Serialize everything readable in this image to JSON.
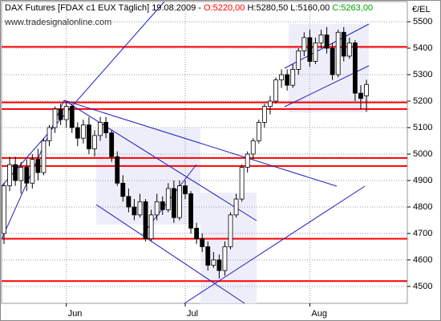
{
  "chart_data": {
    "type": "candlestick",
    "title_parts": [
      {
        "text": "DAX Futures [FDAX c1 EUX  Täglich] 19.08.2009 -",
        "color": "#000000"
      },
      {
        "text": "O:5220,00",
        "color": "#ff0000"
      },
      {
        "text": "H:5280,50 L:5160,00",
        "color": "#000000"
      },
      {
        "text": "C:5263,00",
        "color": "#00a000"
      }
    ],
    "watermark": "www.tradesignalonline.com",
    "y_label": "€/EL",
    "categories": [
      null,
      null,
      null,
      null,
      null,
      null,
      null,
      null,
      null,
      null,
      null,
      "Jun",
      null,
      null,
      null,
      null,
      null,
      null,
      null,
      null,
      null,
      null,
      null,
      null,
      null,
      null,
      null,
      null,
      null,
      null,
      null,
      null,
      "Jul",
      null,
      null,
      null,
      null,
      null,
      null,
      null,
      null,
      null,
      null,
      null,
      null,
      null,
      null,
      null,
      null,
      null,
      null,
      null,
      null,
      null,
      "Aug",
      null,
      null,
      null,
      null,
      null,
      null,
      null,
      null,
      null,
      null
    ],
    "open": [
      4700,
      4880,
      4960,
      4900,
      4950,
      4890,
      4980,
      4930,
      5050,
      5100,
      5170,
      5130,
      5180,
      5100,
      5060,
      5110,
      5020,
      5070,
      5120,
      5080,
      4990,
      4890,
      4840,
      4800,
      4770,
      4820,
      4680,
      4770,
      4820,
      4790,
      4870,
      4760,
      4880,
      4850,
      4720,
      4680,
      4650,
      4580,
      4600,
      4560,
      4650,
      4770,
      4830,
      4950,
      5000,
      5050,
      5120,
      5180,
      5200,
      5280,
      5300,
      5260,
      5320,
      5390,
      5440,
      5350,
      5420,
      5450,
      5400,
      5300,
      5460,
      5370,
      5420,
      5230,
      5220
    ],
    "high": [
      4890,
      4990,
      4990,
      4970,
      4980,
      5000,
      5020,
      5060,
      5110,
      5180,
      5190,
      5195,
      5190,
      5120,
      5130,
      5140,
      5090,
      5140,
      5140,
      5090,
      5010,
      4920,
      4870,
      4830,
      4850,
      4830,
      4790,
      4850,
      4840,
      4890,
      4900,
      4900,
      4900,
      4860,
      4740,
      4700,
      4670,
      4630,
      4620,
      4670,
      4780,
      4850,
      4960,
      5010,
      5060,
      5130,
      5190,
      5220,
      5290,
      5320,
      5320,
      5340,
      5400,
      5460,
      5470,
      5440,
      5470,
      5480,
      5420,
      5470,
      5480,
      5440,
      5430,
      5260,
      5280.5
    ],
    "low": [
      4660,
      4860,
      4880,
      4850,
      4860,
      4870,
      4900,
      4920,
      5030,
      5080,
      5110,
      5100,
      5080,
      5030,
      5040,
      5000,
      4990,
      5050,
      5060,
      4970,
      4880,
      4820,
      4780,
      4750,
      4760,
      4670,
      4670,
      4750,
      4770,
      4780,
      4740,
      4750,
      4830,
      4700,
      4660,
      4630,
      4560,
      4570,
      4530,
      4540,
      4640,
      4760,
      4820,
      4930,
      4980,
      5040,
      5100,
      5150,
      5190,
      5250,
      5240,
      5250,
      5300,
      5370,
      5330,
      5340,
      5400,
      5380,
      5280,
      5290,
      5350,
      5360,
      5200,
      5170,
      5160
    ],
    "close": [
      4880,
      4960,
      4900,
      4950,
      4890,
      4980,
      4930,
      5050,
      5100,
      5170,
      5130,
      5180,
      5100,
      5060,
      5110,
      5020,
      5070,
      5120,
      5080,
      4990,
      4890,
      4840,
      4800,
      4770,
      4820,
      4680,
      4770,
      4820,
      4790,
      4870,
      4760,
      4880,
      4850,
      4720,
      4680,
      4650,
      4580,
      4600,
      4560,
      4650,
      4770,
      4830,
      4950,
      5000,
      5050,
      5120,
      5180,
      5200,
      5280,
      5300,
      5260,
      5320,
      5390,
      5440,
      5350,
      5420,
      5450,
      5400,
      5300,
      5460,
      5370,
      5420,
      5230,
      5210,
      5263
    ],
    "up_color": "#ffffff",
    "down_color": "#000000",
    "levels": [
      5405,
      5195,
      5170,
      4985,
      4955,
      4680,
      4520
    ],
    "level_color": "#ff0000",
    "ylim": [
      4436,
      5576
    ],
    "yticks": [
      4500,
      4600,
      4700,
      4800,
      4900,
      5000,
      5100,
      5200,
      5300,
      5400,
      5500
    ],
    "grid": true
  }
}
